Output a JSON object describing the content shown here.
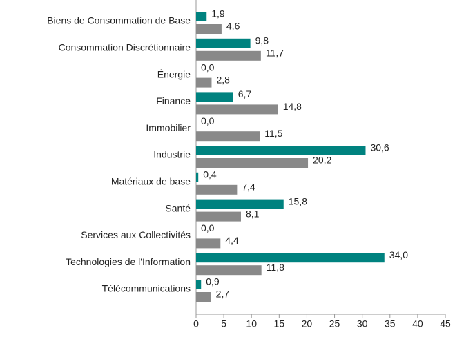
{
  "chart_data": {
    "type": "hbar",
    "categories": [
      "Biens de Consommation de Base",
      "Consommation Discrétionnaire",
      "Énergie",
      "Finance",
      "Immobilier",
      "Industrie",
      "Matériaux de base",
      "Santé",
      "Services aux Collectivités",
      "Technologies de l'Information",
      "Télécommunications"
    ],
    "series": [
      {
        "color": "#00827f",
        "values": [
          1.9,
          9.8,
          0.0,
          6.7,
          0.0,
          30.6,
          0.4,
          15.8,
          0.0,
          34.0,
          0.9
        ],
        "value_labels": [
          "1,9",
          "9,8",
          "0,0",
          "6,7",
          "0,0",
          "30,6",
          "0,4",
          "15,8",
          "0,0",
          "34,0",
          "0,9"
        ]
      },
      {
        "color": "#898989",
        "values": [
          4.6,
          11.7,
          2.8,
          14.8,
          11.5,
          20.2,
          7.4,
          8.1,
          4.4,
          11.8,
          2.7
        ],
        "value_labels": [
          "4,6",
          "11,7",
          "2,8",
          "14,8",
          "11,5",
          "20,2",
          "7,4",
          "8,1",
          "4,4",
          "11,8",
          "2,7"
        ]
      }
    ],
    "xlim": [
      0,
      45
    ],
    "xticks": [
      0,
      5,
      10,
      15,
      20,
      25,
      30,
      35,
      40,
      45
    ],
    "grid": false
  }
}
